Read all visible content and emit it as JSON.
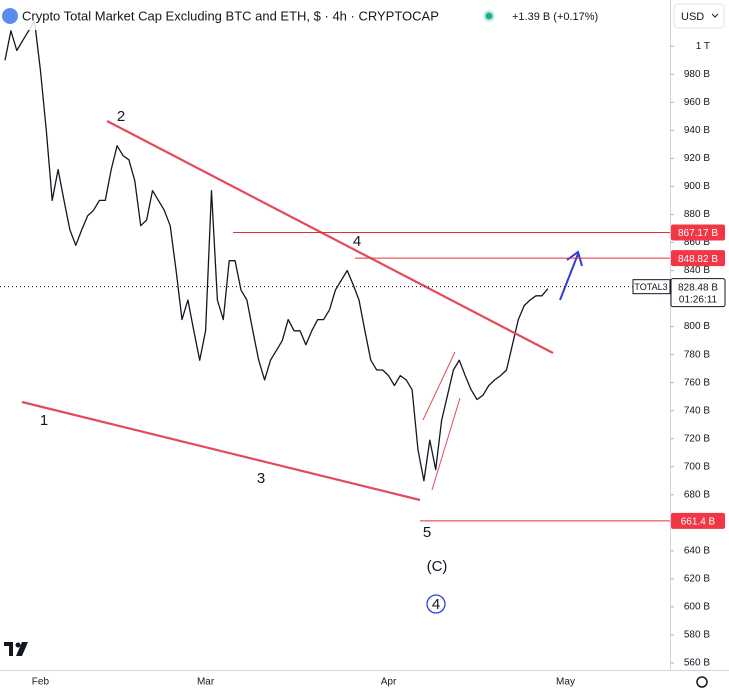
{
  "chart_data": {
    "type": "line",
    "title": "Crypto Total Market Cap Excluding BTC and ETH, $ · 4h · CRYPTOCAP",
    "change": "+1.39 B (+0.17%)",
    "currency": "USD",
    "categories": [
      null,
      null,
      null,
      null,
      null,
      null,
      "Feb",
      null,
      null,
      null,
      null,
      null,
      null,
      null,
      null,
      null,
      null,
      null,
      null,
      null,
      null,
      null,
      null,
      null,
      null,
      null,
      null,
      null,
      null,
      null,
      null,
      null,
      null,
      null,
      "Mar",
      null,
      null,
      null,
      null,
      null,
      null,
      null,
      null,
      null,
      null,
      null,
      null,
      null,
      null,
      null,
      null,
      null,
      null,
      null,
      null,
      null,
      null,
      null,
      null,
      null,
      null,
      null,
      null,
      null,
      null,
      "Apr",
      null,
      null,
      null,
      null,
      null,
      null,
      null,
      null,
      null,
      null,
      null,
      null,
      null,
      null,
      null,
      null,
      null,
      null,
      null,
      null,
      null,
      null,
      null,
      null,
      null,
      null,
      null,
      null,
      null,
      "May"
    ],
    "series": [
      {
        "name": "TOTAL3",
        "color": "#131722",
        "values": [
          990,
          1011,
          997,
          1004,
          1011,
          1018,
          983,
          940,
          890,
          912,
          890,
          869,
          858,
          869,
          879,
          883,
          890,
          890,
          912,
          929,
          922,
          919,
          904,
          872,
          876,
          897,
          890,
          883,
          872,
          840,
          805,
          819,
          797,
          776,
          797,
          897,
          819,
          805,
          847,
          847,
          826,
          819,
          797,
          776,
          762,
          776,
          783,
          790,
          805,
          797,
          797,
          787,
          797,
          805,
          805,
          812,
          826,
          833,
          840,
          830,
          819,
          797,
          776,
          769,
          769,
          765,
          758,
          765,
          762,
          755,
          712,
          690,
          719,
          698,
          733,
          751,
          769,
          776,
          765,
          755,
          748,
          751,
          758,
          762,
          765,
          769,
          787,
          805,
          815,
          819,
          822,
          822,
          827,
          null,
          null,
          null
        ]
      }
    ],
    "ylim": [
      555,
      1033
    ],
    "yticks": [
      {
        "value": 560,
        "label": "560 B"
      },
      {
        "value": 580,
        "label": "580 B"
      },
      {
        "value": 600,
        "label": "600 B"
      },
      {
        "value": 620,
        "label": "620 B"
      },
      {
        "value": 640,
        "label": "640 B"
      },
      {
        "value": 660,
        "label": "660 B"
      },
      {
        "value": 680,
        "label": "680 B"
      },
      {
        "value": 700,
        "label": "700 B"
      },
      {
        "value": 720,
        "label": "720 B"
      },
      {
        "value": 740,
        "label": "740 B"
      },
      {
        "value": 760,
        "label": "760 B"
      },
      {
        "value": 780,
        "label": "780 B"
      },
      {
        "value": 800,
        "label": "800 B"
      },
      {
        "value": 820,
        "label": "820 B"
      },
      {
        "value": 840,
        "label": "840 B"
      },
      {
        "value": 860,
        "label": "860 B"
      },
      {
        "value": 880,
        "label": "880 B"
      },
      {
        "value": 900,
        "label": "900 B"
      },
      {
        "value": 920,
        "label": "920 B"
      },
      {
        "value": 940,
        "label": "940 B"
      },
      {
        "value": 960,
        "label": "960 B"
      },
      {
        "value": 980,
        "label": "980 B"
      },
      {
        "value": 1000,
        "label": "1 T"
      }
    ],
    "levels": [
      {
        "value": 867.17,
        "label": "867.17 B"
      },
      {
        "value": 848.82,
        "label": "848.82 B"
      },
      {
        "value": 661.4,
        "label": "661.4 B"
      }
    ],
    "last_price": {
      "value": 828.48,
      "label": "828.48 B",
      "countdown": "01:26:11"
    },
    "annotations": [
      "1",
      "2",
      "3",
      "4",
      "5",
      "(C)",
      "4"
    ]
  }
}
